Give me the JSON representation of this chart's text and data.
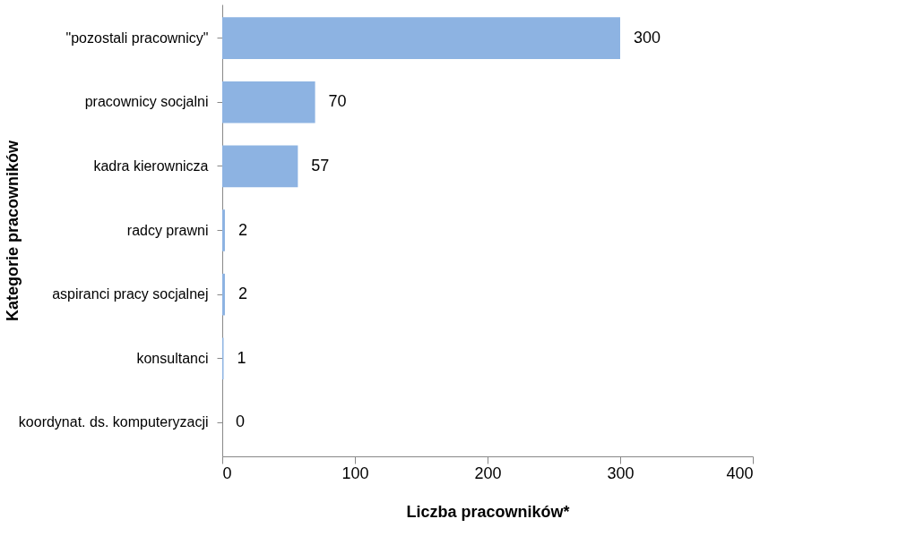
{
  "chart_data": {
    "type": "bar",
    "orientation": "horizontal",
    "xlabel": "Liczba pracowników*",
    "ylabel": "Kategorie pracowników",
    "categories": [
      "\"pozostali pracownicy\"",
      "pracownicy socjalni",
      "kadra kierownicza",
      "radcy prawni",
      "aspiranci pracy socjalnej",
      "konsultanci",
      "koordynat. ds. komputeryzacji"
    ],
    "values": [
      300,
      70,
      57,
      2,
      2,
      1,
      0
    ],
    "color": "#8db3e2",
    "xlim": [
      0,
      400
    ],
    "xticks": [
      0,
      100,
      200,
      300,
      400
    ],
    "grid": false,
    "data_labels": true
  }
}
